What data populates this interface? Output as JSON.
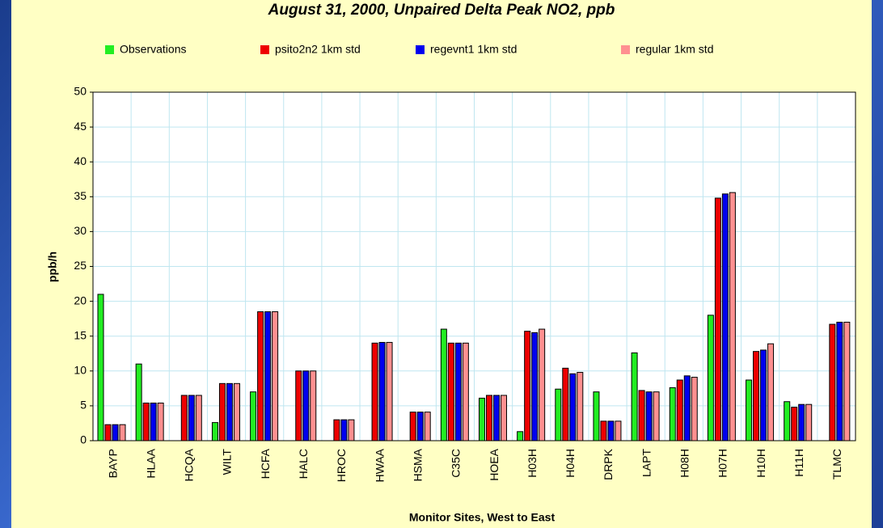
{
  "chart_data": {
    "type": "bar",
    "title": "August 31, 2000, Unpaired Delta Peak NO2, ppb",
    "x_label": "Monitor Sites, West to East",
    "y_label": "ppb/h",
    "categories": [
      "BAYP",
      "HLAA",
      "HCQA",
      "WILT",
      "HCFA",
      "HALC",
      "HROC",
      "HWAA",
      "HSMA",
      "C35C",
      "HOEA",
      "H03H",
      "H04H",
      "DRPK",
      "LAPT",
      "H08H",
      "H07H",
      "H10H",
      "H11H",
      "TLMC"
    ],
    "series": [
      {
        "name": "Observations",
        "color": "#22ee22",
        "values": [
          21,
          11,
          null,
          2.6,
          7,
          null,
          null,
          null,
          null,
          16,
          6.1,
          1.3,
          7.4,
          7,
          12.6,
          7.6,
          18,
          8.7,
          5.6,
          null
        ]
      },
      {
        "name": "psito2n2 1km std",
        "color": "#ee0000",
        "values": [
          2.3,
          5.4,
          6.5,
          8.2,
          18.5,
          10,
          3,
          14,
          4.1,
          14,
          6.5,
          15.7,
          10.4,
          2.8,
          7.2,
          8.7,
          34.8,
          12.8,
          4.8,
          16.7
        ]
      },
      {
        "name": "regevnt1 1km std",
        "color": "#0000ee",
        "values": [
          2.3,
          5.4,
          6.5,
          8.2,
          18.5,
          10,
          3,
          14.1,
          4.1,
          14,
          6.5,
          15.5,
          9.6,
          2.8,
          7,
          9.3,
          35.4,
          13,
          5.2,
          17
        ]
      },
      {
        "name": "regular 1km std",
        "color": "#ff9090",
        "values": [
          2.3,
          5.4,
          6.5,
          8.2,
          18.5,
          10,
          3,
          14.1,
          4.1,
          14,
          6.5,
          16,
          9.8,
          2.8,
          7,
          9.1,
          35.6,
          13.9,
          5.2,
          17
        ]
      }
    ],
    "ylim": [
      0,
      50
    ],
    "yticks": [
      0,
      5,
      10,
      15,
      20,
      25,
      30,
      35,
      40,
      45,
      50
    ],
    "grid": true,
    "legend": "top"
  }
}
